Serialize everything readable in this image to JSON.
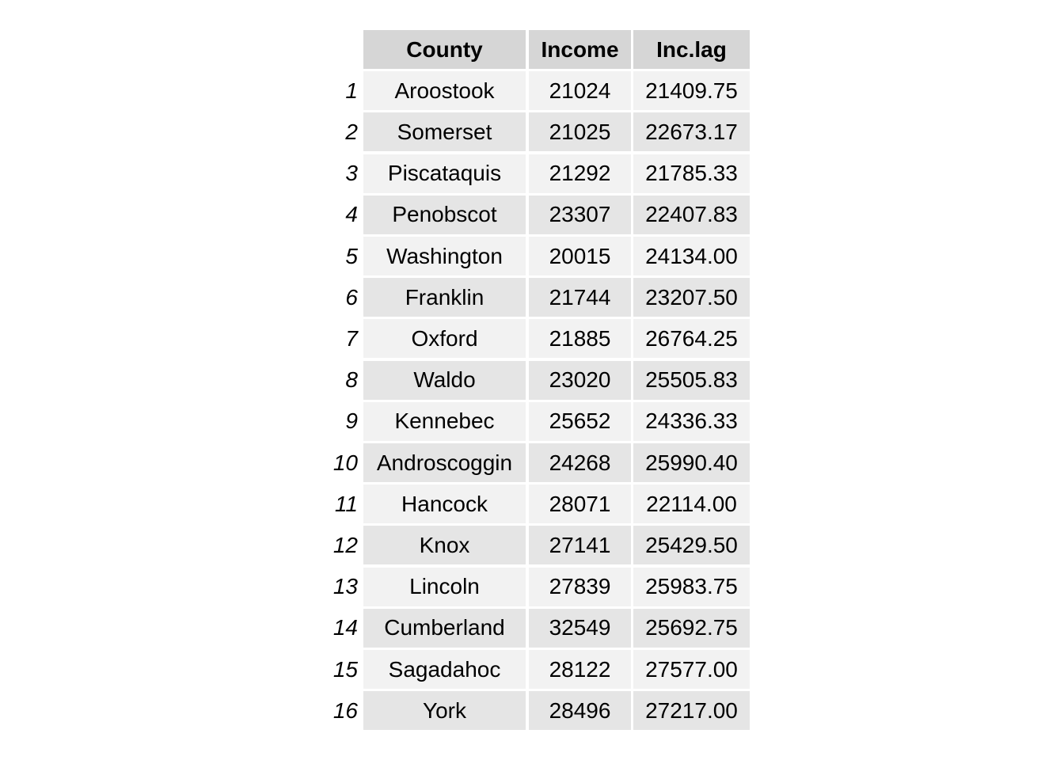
{
  "chart_data": {
    "type": "table",
    "columns": [
      "County",
      "Income",
      "Inc.lag"
    ],
    "row_labels": [
      "1",
      "2",
      "3",
      "4",
      "5",
      "6",
      "7",
      "8",
      "9",
      "10",
      "11",
      "12",
      "13",
      "14",
      "15",
      "16"
    ],
    "rows": [
      [
        "Aroostook",
        "21024",
        "21409.75"
      ],
      [
        "Somerset",
        "21025",
        "22673.17"
      ],
      [
        "Piscataquis",
        "21292",
        "21785.33"
      ],
      [
        "Penobscot",
        "23307",
        "22407.83"
      ],
      [
        "Washington",
        "20015",
        "24134.00"
      ],
      [
        "Franklin",
        "21744",
        "23207.50"
      ],
      [
        "Oxford",
        "21885",
        "26764.25"
      ],
      [
        "Waldo",
        "23020",
        "25505.83"
      ],
      [
        "Kennebec",
        "25652",
        "24336.33"
      ],
      [
        "Androscoggin",
        "24268",
        "25990.40"
      ],
      [
        "Hancock",
        "28071",
        "22114.00"
      ],
      [
        "Knox",
        "27141",
        "25429.50"
      ],
      [
        "Lincoln",
        "27839",
        "25983.75"
      ],
      [
        "Cumberland",
        "32549",
        "25692.75"
      ],
      [
        "Sagadahoc",
        "28122",
        "27577.00"
      ],
      [
        "York",
        "28496",
        "27217.00"
      ]
    ],
    "colors": {
      "header_bg": "#d6d6d6",
      "row_odd_bg": "#f2f2f2",
      "row_even_bg": "#e5e5e5",
      "text": "#000000"
    }
  }
}
